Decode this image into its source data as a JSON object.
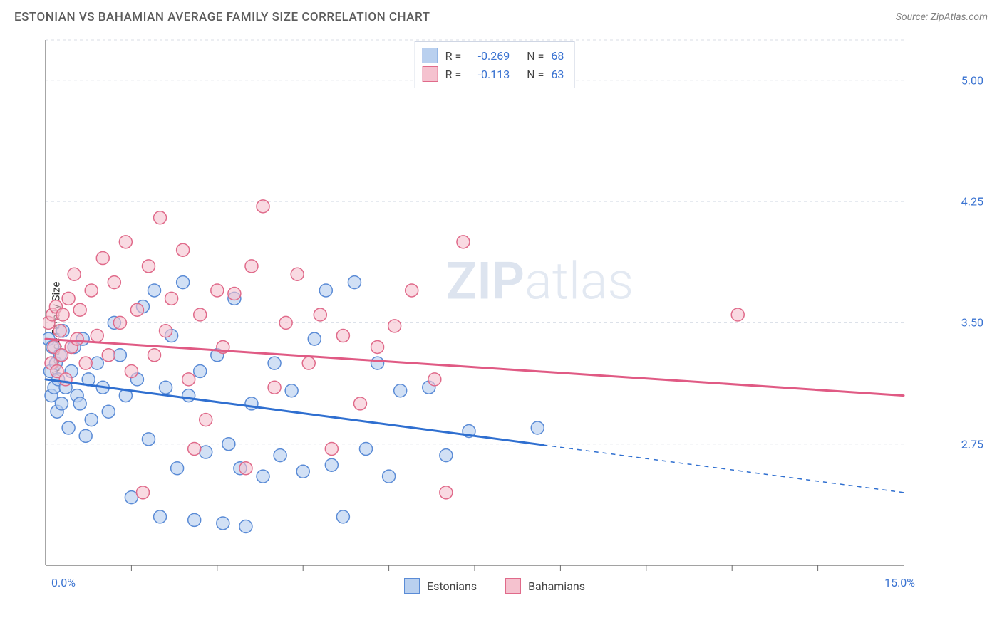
{
  "header": {
    "title": "ESTONIAN VS BAHAMIAN AVERAGE FAMILY SIZE CORRELATION CHART",
    "source": "Source: ZipAtlas.com"
  },
  "chart": {
    "type": "scatter",
    "ylabel": "Average Family Size",
    "x_min_label": "0.0%",
    "x_max_label": "15.0%",
    "xlim": [
      0,
      15
    ],
    "ylim": [
      2.0,
      5.25
    ],
    "yticks": [
      2.75,
      3.5,
      4.25,
      5.0
    ],
    "ytick_labels": [
      "2.75",
      "3.50",
      "4.25",
      "5.00"
    ],
    "xtick_positions": [
      1.5,
      3.0,
      4.5,
      6.0,
      7.5,
      9.0,
      10.5,
      12.0,
      13.5
    ],
    "grid_color": "#d8dde6",
    "axis_color": "#6b6b6b",
    "background": "#ffffff",
    "marker_radius": 9,
    "marker_stroke_width": 1.5,
    "series": [
      {
        "name": "Estonians",
        "fill": "#b9d0ef",
        "stroke": "#5a8bd6",
        "fill_opacity": 0.65,
        "R": "-0.269",
        "N": "68",
        "trend": {
          "y_at_x0": 3.15,
          "y_at_x15": 2.45,
          "solid_until_x": 8.7,
          "color": "#2f6fd0",
          "width": 3
        },
        "points": [
          [
            0.05,
            3.4
          ],
          [
            0.08,
            3.2
          ],
          [
            0.1,
            3.05
          ],
          [
            0.12,
            3.35
          ],
          [
            0.15,
            3.1
          ],
          [
            0.18,
            3.25
          ],
          [
            0.2,
            2.95
          ],
          [
            0.22,
            3.15
          ],
          [
            0.25,
            3.3
          ],
          [
            0.28,
            3.0
          ],
          [
            0.3,
            3.45
          ],
          [
            0.35,
            3.1
          ],
          [
            0.4,
            2.85
          ],
          [
            0.45,
            3.2
          ],
          [
            0.5,
            3.35
          ],
          [
            0.55,
            3.05
          ],
          [
            0.6,
            3.0
          ],
          [
            0.65,
            3.4
          ],
          [
            0.7,
            2.8
          ],
          [
            0.75,
            3.15
          ],
          [
            0.8,
            2.9
          ],
          [
            0.9,
            3.25
          ],
          [
            1.0,
            3.1
          ],
          [
            1.1,
            2.95
          ],
          [
            1.2,
            3.5
          ],
          [
            1.3,
            3.3
          ],
          [
            1.4,
            3.05
          ],
          [
            1.5,
            2.42
          ],
          [
            1.6,
            3.15
          ],
          [
            1.7,
            3.6
          ],
          [
            1.8,
            2.78
          ],
          [
            1.9,
            3.7
          ],
          [
            2.0,
            2.3
          ],
          [
            2.1,
            3.1
          ],
          [
            2.2,
            3.42
          ],
          [
            2.3,
            2.6
          ],
          [
            2.4,
            3.75
          ],
          [
            2.5,
            3.05
          ],
          [
            2.6,
            2.28
          ],
          [
            2.7,
            3.2
          ],
          [
            2.8,
            2.7
          ],
          [
            3.0,
            3.3
          ],
          [
            3.1,
            2.26
          ],
          [
            3.2,
            2.75
          ],
          [
            3.3,
            3.65
          ],
          [
            3.4,
            2.6
          ],
          [
            3.5,
            2.24
          ],
          [
            3.6,
            3.0
          ],
          [
            3.8,
            2.55
          ],
          [
            4.0,
            3.25
          ],
          [
            4.1,
            2.68
          ],
          [
            4.3,
            3.08
          ],
          [
            4.5,
            2.58
          ],
          [
            4.7,
            3.4
          ],
          [
            4.9,
            3.7
          ],
          [
            5.0,
            2.62
          ],
          [
            5.2,
            2.3
          ],
          [
            5.4,
            3.75
          ],
          [
            5.6,
            2.72
          ],
          [
            5.8,
            3.25
          ],
          [
            6.0,
            2.55
          ],
          [
            6.2,
            3.08
          ],
          [
            6.7,
            3.1
          ],
          [
            7.0,
            2.68
          ],
          [
            7.4,
            2.83
          ],
          [
            8.6,
            2.85
          ]
        ]
      },
      {
        "name": "Bahamians",
        "fill": "#f5c2cf",
        "stroke": "#e06a8a",
        "fill_opacity": 0.6,
        "R": "-0.113",
        "N": "63",
        "trend": {
          "y_at_x0": 3.4,
          "y_at_x15": 3.05,
          "solid_until_x": 15,
          "color": "#e05a84",
          "width": 3
        },
        "points": [
          [
            0.05,
            3.5
          ],
          [
            0.1,
            3.25
          ],
          [
            0.12,
            3.55
          ],
          [
            0.15,
            3.35
          ],
          [
            0.18,
            3.6
          ],
          [
            0.2,
            3.2
          ],
          [
            0.25,
            3.45
          ],
          [
            0.28,
            3.3
          ],
          [
            0.3,
            3.55
          ],
          [
            0.35,
            3.15
          ],
          [
            0.4,
            3.65
          ],
          [
            0.45,
            3.35
          ],
          [
            0.5,
            3.8
          ],
          [
            0.55,
            3.4
          ],
          [
            0.6,
            3.58
          ],
          [
            0.7,
            3.25
          ],
          [
            0.8,
            3.7
          ],
          [
            0.9,
            3.42
          ],
          [
            1.0,
            3.9
          ],
          [
            1.1,
            3.3
          ],
          [
            1.2,
            3.75
          ],
          [
            1.3,
            3.5
          ],
          [
            1.4,
            4.0
          ],
          [
            1.5,
            3.2
          ],
          [
            1.6,
            3.58
          ],
          [
            1.7,
            2.45
          ],
          [
            1.8,
            3.85
          ],
          [
            1.9,
            3.3
          ],
          [
            2.0,
            4.15
          ],
          [
            2.1,
            3.45
          ],
          [
            2.2,
            3.65
          ],
          [
            2.4,
            3.95
          ],
          [
            2.5,
            3.15
          ],
          [
            2.6,
            2.72
          ],
          [
            2.7,
            3.55
          ],
          [
            2.8,
            2.9
          ],
          [
            3.0,
            3.7
          ],
          [
            3.1,
            3.35
          ],
          [
            3.3,
            3.68
          ],
          [
            3.5,
            2.6
          ],
          [
            3.6,
            3.85
          ],
          [
            3.8,
            4.22
          ],
          [
            4.0,
            3.1
          ],
          [
            4.2,
            3.5
          ],
          [
            4.4,
            3.8
          ],
          [
            4.6,
            3.25
          ],
          [
            4.8,
            3.55
          ],
          [
            5.0,
            2.72
          ],
          [
            5.2,
            3.42
          ],
          [
            5.5,
            3.0
          ],
          [
            5.8,
            3.35
          ],
          [
            6.1,
            3.48
          ],
          [
            6.4,
            3.7
          ],
          [
            6.8,
            3.15
          ],
          [
            7.0,
            2.45
          ],
          [
            7.3,
            4.0
          ],
          [
            12.1,
            3.55
          ]
        ]
      }
    ],
    "legend_bottom": [
      "Estonians",
      "Bahamians"
    ],
    "watermark": {
      "bold": "ZIP",
      "thin": "atlas"
    }
  }
}
